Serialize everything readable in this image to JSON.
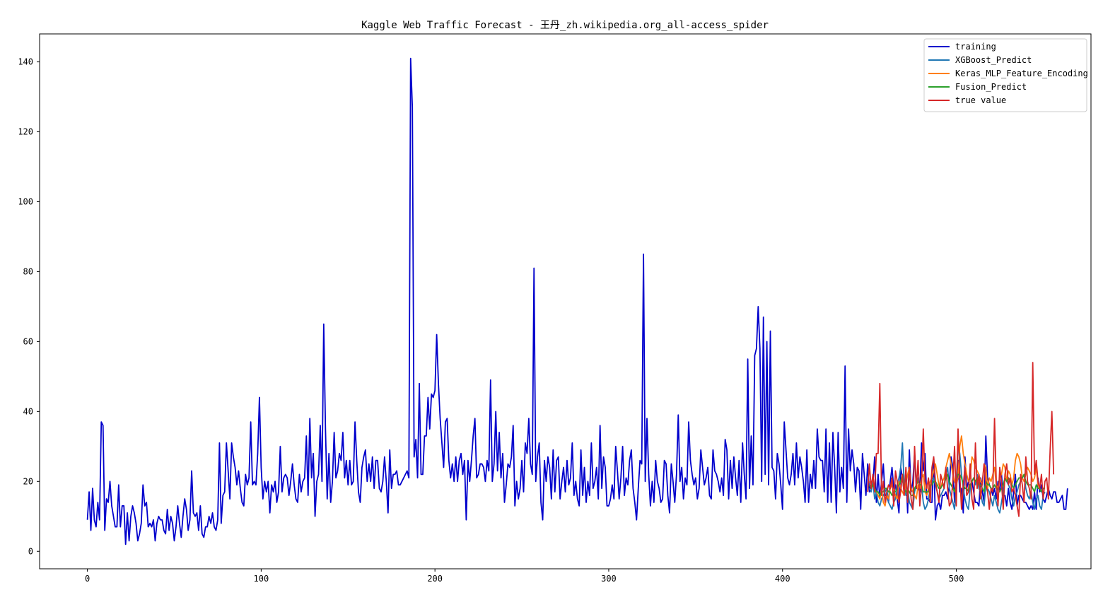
{
  "chart_data": {
    "type": "line",
    "title": "Kaggle Web Traffic Forecast - 王丹_zh.wikipedia.org_all-access_spider",
    "xlabel": "",
    "ylabel": "",
    "xlim": [
      -27.5,
      577.5
    ],
    "ylim": [
      -5,
      148
    ],
    "x_ticks": [
      0,
      100,
      200,
      300,
      400,
      500
    ],
    "y_ticks": [
      0,
      20,
      40,
      60,
      80,
      100,
      120,
      140
    ],
    "legend_position": "top-right",
    "grid": false,
    "series": [
      {
        "name": "training",
        "color": "#0000cc",
        "x_start": 0,
        "values": [
          9,
          17,
          6,
          18,
          9,
          7,
          14,
          9,
          37,
          36,
          6,
          15,
          14,
          20,
          13,
          10,
          7,
          7,
          19,
          7,
          13,
          13,
          2,
          11,
          3,
          10,
          13,
          11,
          8,
          3,
          5,
          8,
          19,
          13,
          14,
          7,
          8,
          7,
          9,
          3,
          8,
          10,
          9,
          9,
          6,
          5,
          12,
          6,
          10,
          8,
          3,
          7,
          13,
          8,
          4,
          10,
          15,
          12,
          6,
          9,
          23,
          11,
          10,
          11,
          6,
          13,
          5,
          4,
          7,
          7,
          10,
          8,
          11,
          7,
          6,
          9,
          31,
          8,
          16,
          17,
          31,
          23,
          15,
          31,
          27,
          24,
          19,
          23,
          18,
          14,
          13,
          22,
          19,
          21,
          37,
          19,
          20,
          19,
          28,
          44,
          24,
          15,
          20,
          17,
          20,
          11,
          19,
          17,
          20,
          14,
          17,
          30,
          17,
          21,
          22,
          21,
          16,
          20,
          25,
          19,
          15,
          14,
          22,
          17,
          20,
          21,
          33,
          16,
          38,
          21,
          28,
          10,
          20,
          22,
          36,
          20,
          65,
          35,
          15,
          28,
          14,
          20,
          34,
          21,
          23,
          28,
          26,
          34,
          21,
          26,
          19,
          26,
          19,
          20,
          37,
          26,
          17,
          14,
          24,
          27,
          29,
          20,
          25,
          20,
          27,
          18,
          26,
          26,
          18,
          17,
          20,
          27,
          20,
          11,
          29,
          18,
          22,
          22,
          23,
          19,
          19,
          20,
          21,
          22,
          23,
          21,
          141,
          127,
          27,
          32,
          21,
          48,
          22,
          22,
          33,
          33,
          44,
          35,
          45,
          44,
          46,
          62,
          48,
          38,
          31,
          24,
          37,
          38,
          26,
          21,
          25,
          20,
          27,
          20,
          26,
          28,
          22,
          26,
          9,
          26,
          20,
          26,
          33,
          38,
          21,
          22,
          25,
          25,
          24,
          20,
          26,
          23,
          49,
          20,
          25,
          40,
          23,
          34,
          21,
          28,
          14,
          19,
          25,
          24,
          27,
          36,
          13,
          20,
          15,
          18,
          26,
          17,
          31,
          28,
          38,
          25,
          22,
          81,
          20,
          27,
          31,
          14,
          9,
          26,
          20,
          27,
          24,
          15,
          29,
          17,
          26,
          27,
          15,
          20,
          24,
          17,
          26,
          19,
          21,
          31,
          16,
          20,
          15,
          13,
          29,
          16,
          24,
          14,
          20,
          16,
          31,
          18,
          20,
          24,
          15,
          36,
          18,
          27,
          24,
          13,
          13,
          15,
          19,
          15,
          30,
          23,
          15,
          21,
          30,
          16,
          21,
          19,
          26,
          29,
          18,
          14,
          9,
          18,
          26,
          25,
          85,
          20,
          38,
          22,
          13,
          20,
          14,
          26,
          20,
          18,
          14,
          15,
          26,
          25,
          16,
          11,
          25,
          20,
          14,
          22,
          39,
          20,
          24,
          15,
          21,
          19,
          37,
          26,
          22,
          19,
          21,
          15,
          18,
          29,
          24,
          19,
          21,
          24,
          16,
          15,
          29,
          23,
          22,
          20,
          17,
          21,
          16,
          32,
          29,
          15,
          26,
          18,
          27,
          21,
          16,
          26,
          14,
          31,
          22,
          15,
          55,
          18,
          33,
          19,
          56,
          58,
          70,
          58,
          20,
          67,
          22,
          60,
          19,
          63,
          24,
          23,
          15,
          28,
          25,
          19,
          12,
          37,
          29,
          21,
          19,
          22,
          28,
          19,
          31,
          21,
          27,
          24,
          20,
          14,
          29,
          14,
          22,
          18,
          26,
          18,
          35,
          27,
          26,
          26,
          17,
          35,
          14,
          31,
          14,
          34,
          24,
          11,
          34,
          17,
          24,
          18,
          53,
          14,
          35,
          23,
          29,
          25,
          17,
          24,
          23,
          12,
          28,
          22,
          16,
          25,
          17,
          20,
          19,
          27,
          14,
          22,
          15,
          20,
          25,
          16,
          16,
          14,
          20,
          24,
          18,
          19,
          15,
          11,
          24,
          21,
          17,
          23,
          11,
          29,
          17,
          20,
          28,
          18,
          18,
          17,
          31,
          23,
          28,
          15,
          15,
          14,
          14,
          27,
          9,
          13,
          14,
          12,
          16,
          16,
          17,
          15,
          19,
          27,
          24,
          14,
          20,
          26,
          17,
          18,
          11,
          27,
          18,
          20,
          18,
          20,
          17,
          14,
          14,
          13,
          21,
          17,
          14,
          33,
          21,
          19,
          18,
          16,
          18,
          15,
          20,
          17,
          22,
          16,
          16,
          13,
          18,
          14,
          12,
          17,
          22,
          13,
          16,
          16,
          15,
          14,
          14,
          13,
          12,
          13,
          12,
          17,
          12,
          21,
          17,
          19,
          15,
          14,
          16,
          18,
          16,
          15,
          17,
          17,
          14,
          14,
          15,
          16,
          12,
          12,
          18
        ]
      },
      {
        "name": "XGBoost_Predict",
        "color": "#1f77b4",
        "x_start": 450,
        "values": [
          18,
          17,
          20,
          15,
          17,
          14,
          13,
          15,
          16,
          17,
          18,
          14,
          13,
          12,
          14,
          15,
          19,
          21,
          24,
          31,
          19,
          16,
          18,
          14,
          13,
          12,
          17,
          19,
          21,
          18,
          19,
          14,
          12,
          13,
          15,
          18,
          20,
          21,
          19,
          17,
          15,
          16,
          17,
          18,
          22,
          24,
          18,
          16,
          14,
          12,
          20,
          31,
          28,
          22,
          18,
          15,
          13,
          12,
          18,
          20,
          21,
          19,
          22,
          18,
          17,
          14,
          13,
          19,
          18,
          17,
          15,
          13,
          16,
          14,
          12,
          11,
          14,
          17,
          21,
          20,
          19,
          18,
          15,
          13,
          16,
          17,
          19,
          20,
          21,
          22,
          18,
          16,
          15,
          17,
          14,
          12,
          15,
          16,
          13,
          12,
          16,
          17
        ]
      },
      {
        "name": "Keras_MLP_Feature_Encoding",
        "color": "#ff7f0e",
        "x_start": 450,
        "values": [
          20,
          19,
          21,
          18,
          17,
          16,
          15,
          18,
          14,
          13,
          16,
          15,
          18,
          19,
          17,
          16,
          15,
          20,
          18,
          17,
          16,
          19,
          22,
          24,
          18,
          17,
          16,
          15,
          19,
          18,
          21,
          22,
          17,
          16,
          18,
          20,
          21,
          23,
          25,
          22,
          19,
          18,
          20,
          21,
          24,
          26,
          28,
          25,
          22,
          20,
          19,
          21,
          30,
          33,
          28,
          25,
          22,
          20,
          21,
          27,
          26,
          24,
          23,
          22,
          20,
          19,
          25,
          24,
          18,
          21,
          20,
          22,
          24,
          19,
          18,
          21,
          22,
          25,
          24,
          20,
          23,
          22,
          19,
          21,
          26,
          28,
          27,
          25,
          21,
          20,
          22,
          24,
          23,
          22,
          20,
          21,
          24,
          19,
          18,
          17
        ]
      },
      {
        "name": "Fusion_Predict",
        "color": "#2ca02c",
        "x_start": 450,
        "values": [
          19,
          18,
          19,
          18,
          17,
          17,
          16,
          17,
          17,
          18,
          18,
          17,
          17,
          16,
          17,
          17,
          18,
          19,
          20,
          22,
          18,
          17,
          18,
          17,
          16,
          16,
          18,
          19,
          20,
          19,
          19,
          17,
          17,
          17,
          17,
          19,
          19,
          20,
          20,
          19,
          18,
          18,
          19,
          19,
          21,
          22,
          20,
          19,
          18,
          17,
          20,
          22,
          22,
          21,
          19,
          18,
          18,
          17,
          19,
          20,
          21,
          20,
          21,
          19,
          19,
          18,
          17,
          20,
          19,
          19,
          18,
          18,
          19,
          18,
          18,
          17,
          18,
          19,
          21,
          20,
          21,
          20,
          19,
          18,
          19,
          20,
          21,
          21,
          21,
          22,
          20,
          19,
          19,
          19,
          18,
          17,
          19,
          18,
          18,
          17,
          18,
          18
        ]
      },
      {
        "name": "true value",
        "color": "#d62728",
        "x_start": 449,
        "values": [
          17,
          25,
          18,
          22,
          17,
          28,
          28,
          48,
          16,
          20,
          14,
          17,
          19,
          18,
          21,
          13,
          23,
          20,
          14,
          17,
          22,
          16,
          24,
          14,
          24,
          15,
          12,
          30,
          18,
          26,
          13,
          19,
          35,
          20,
          18,
          21,
          14,
          24,
          27,
          20,
          17,
          14,
          22,
          20,
          18,
          24,
          18,
          13,
          14,
          20,
          30,
          13,
          35,
          22,
          12,
          19,
          24,
          16,
          17,
          25,
          15,
          12,
          31,
          18,
          22,
          15,
          20,
          25,
          19,
          17,
          12,
          18,
          17,
          38,
          20,
          13,
          24,
          20,
          12,
          22,
          25,
          19,
          21,
          17,
          18,
          16,
          13,
          10,
          22,
          19,
          14,
          27,
          20,
          18,
          15,
          54,
          22,
          26,
          20,
          18,
          22,
          15,
          20,
          21,
          15,
          29,
          40,
          22
        ]
      }
    ]
  }
}
